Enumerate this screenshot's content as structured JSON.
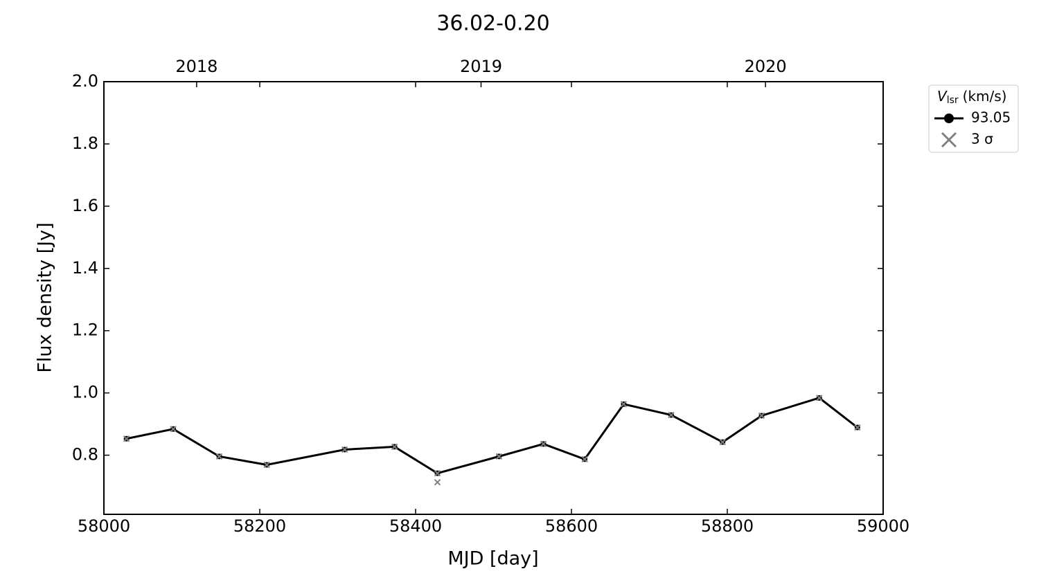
{
  "chart_data": {
    "type": "line",
    "title": "36.02-0.20",
    "x_label": "MJD [day]",
    "y_label": "Flux density [Jy]",
    "xlim": [
      58000,
      59000
    ],
    "xticks": [
      58000,
      58200,
      58400,
      58600,
      58800,
      59000
    ],
    "ylim": [
      0.61,
      2.0
    ],
    "yticks": [
      0.8,
      {
        "value": 1.0,
        "label": "1.0"
      },
      1.2,
      1.4,
      1.6,
      1.8,
      {
        "value": 2.0,
        "label": "2.0"
      }
    ],
    "x2ticks": [
      {
        "value": 58119,
        "label": "2018"
      },
      {
        "value": 58484,
        "label": "2019"
      },
      {
        "value": 58849,
        "label": "2020"
      }
    ],
    "legend_title": {
      "symbol": "V",
      "subscript": "lsr",
      "unit": "(km/s)"
    },
    "legend_position": "outside-upper-right",
    "series": [
      {
        "name": "93.05",
        "color": "#000000",
        "marker": "circle",
        "x": [
          58029,
          58089,
          58148,
          58209,
          58309,
          58373,
          58428,
          58507,
          58564,
          58617,
          58667,
          58728,
          58794,
          58844,
          58918,
          58967
        ],
        "values": [
          0.853,
          0.884,
          0.796,
          0.769,
          0.818,
          0.827,
          0.742,
          0.796,
          0.836,
          0.787,
          0.964,
          0.929,
          0.842,
          0.927,
          0.984,
          0.889
        ]
      },
      {
        "name": "3 σ",
        "color": "#808080",
        "marker": "x",
        "x": [
          58029,
          58089,
          58148,
          58209,
          58309,
          58373,
          58428,
          58428,
          58507,
          58564,
          58617,
          58667,
          58728,
          58794,
          58844,
          58918,
          58967
        ],
        "values": [
          0.853,
          0.884,
          0.796,
          0.769,
          0.818,
          0.827,
          0.742,
          0.713,
          0.796,
          0.836,
          0.787,
          0.964,
          0.929,
          0.842,
          0.927,
          0.984,
          0.889
        ]
      }
    ]
  }
}
